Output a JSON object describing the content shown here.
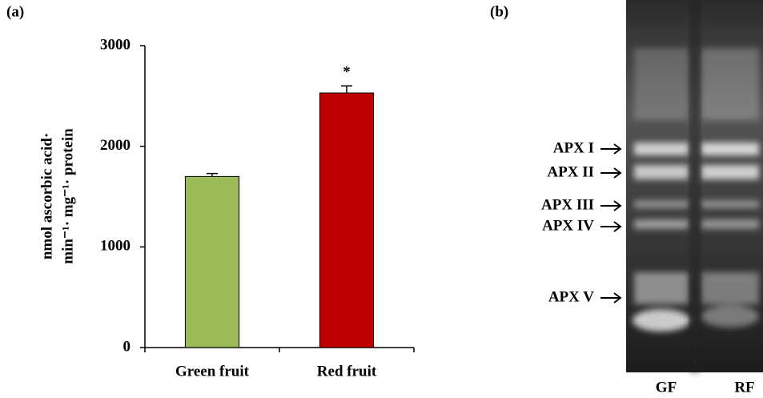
{
  "chart_data": {
    "type": "bar",
    "panel_label": "(a)",
    "y_label": [
      "nmol ascorbic acid·",
      "min⁻¹· mg⁻¹· protein"
    ],
    "categories": [
      "Green fruit",
      "Red fruit"
    ],
    "values": [
      1700,
      2530
    ],
    "errors": [
      30,
      70
    ],
    "colors": [
      "#9bbb59",
      "#c00000"
    ],
    "annotations": [
      null,
      "*"
    ],
    "ylim": [
      0,
      3000
    ],
    "yticks": [
      0,
      1000,
      2000,
      3000
    ],
    "grid": false
  },
  "gel": {
    "panel_label": "(b)",
    "bands": [
      "APX I",
      "APX II",
      "APX III",
      "APX IV",
      "APX V"
    ],
    "lanes": [
      "GF",
      "RF"
    ]
  }
}
